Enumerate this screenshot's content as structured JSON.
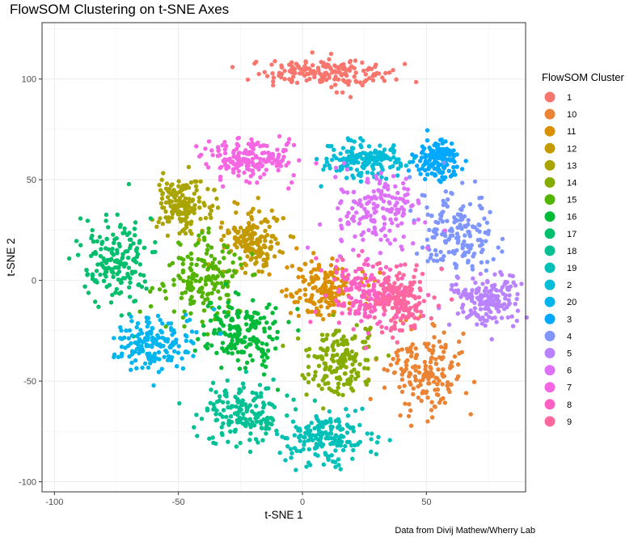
{
  "title": "FlowSOM Clustering on t-SNE Axes",
  "caption": "Data from Divij Mathew/Wherry Lab",
  "chart_data": {
    "type": "scatter",
    "title": "FlowSOM Clustering on t-SNE Axes",
    "xlabel": "t-SNE 1",
    "ylabel": "t-SNE 2",
    "xlim": [
      -105,
      90
    ],
    "ylim": [
      -105,
      128
    ],
    "x_ticks": [
      -100,
      -50,
      0,
      50
    ],
    "y_ticks": [
      -100,
      -50,
      0,
      50,
      100
    ],
    "grid": true,
    "legend": {
      "title": "FlowSOM Cluster",
      "placement": "right"
    },
    "series": [
      {
        "name": "1",
        "color": "#F8766D",
        "center": [
          7,
          103
        ],
        "spread": [
          24,
          6
        ]
      },
      {
        "name": "10",
        "color": "#EB8335",
        "center": [
          50,
          -45
        ],
        "spread": [
          14,
          18
        ]
      },
      {
        "name": "11",
        "color": "#DA8F00",
        "center": [
          10,
          -5
        ],
        "spread": [
          14,
          12
        ]
      },
      {
        "name": "12",
        "color": "#C49A00",
        "center": [
          -20,
          20
        ],
        "spread": [
          12,
          14
        ]
      },
      {
        "name": "13",
        "color": "#A9A400",
        "center": [
          -48,
          38
        ],
        "spread": [
          10,
          13
        ]
      },
      {
        "name": "14",
        "color": "#86AC00",
        "center": [
          15,
          -40
        ],
        "spread": [
          12,
          16
        ]
      },
      {
        "name": "15",
        "color": "#53B400",
        "center": [
          -40,
          0
        ],
        "spread": [
          14,
          18
        ]
      },
      {
        "name": "16",
        "color": "#00BA38",
        "center": [
          -25,
          -25
        ],
        "spread": [
          14,
          16
        ]
      },
      {
        "name": "17",
        "color": "#00BE6B",
        "center": [
          -75,
          10
        ],
        "spread": [
          13,
          20
        ]
      },
      {
        "name": "18",
        "color": "#00C094",
        "center": [
          -25,
          -65
        ],
        "spread": [
          16,
          14
        ]
      },
      {
        "name": "19",
        "color": "#00C0B8",
        "center": [
          10,
          -78
        ],
        "spread": [
          16,
          12
        ]
      },
      {
        "name": "2",
        "color": "#00BCD6",
        "center": [
          25,
          60
        ],
        "spread": [
          14,
          8
        ]
      },
      {
        "name": "20",
        "color": "#00B5EE",
        "center": [
          -60,
          -30
        ],
        "spread": [
          14,
          14
        ]
      },
      {
        "name": "3",
        "color": "#00A9FF",
        "center": [
          55,
          60
        ],
        "spread": [
          8,
          8
        ]
      },
      {
        "name": "4",
        "color": "#7F96FF",
        "center": [
          62,
          25
        ],
        "spread": [
          14,
          18
        ]
      },
      {
        "name": "5",
        "color": "#B983FF",
        "center": [
          75,
          -10
        ],
        "spread": [
          12,
          12
        ]
      },
      {
        "name": "6",
        "color": "#DE71F9",
        "center": [
          30,
          35
        ],
        "spread": [
          16,
          18
        ]
      },
      {
        "name": "7",
        "color": "#F566E3",
        "center": [
          -20,
          60
        ],
        "spread": [
          18,
          10
        ]
      },
      {
        "name": "8",
        "color": "#FF61C3",
        "center": [
          25,
          -5
        ],
        "spread": [
          14,
          16
        ]
      },
      {
        "name": "9",
        "color": "#FF689F",
        "center": [
          40,
          -10
        ],
        "spread": [
          10,
          14
        ]
      }
    ],
    "points_per_cluster": 170
  }
}
